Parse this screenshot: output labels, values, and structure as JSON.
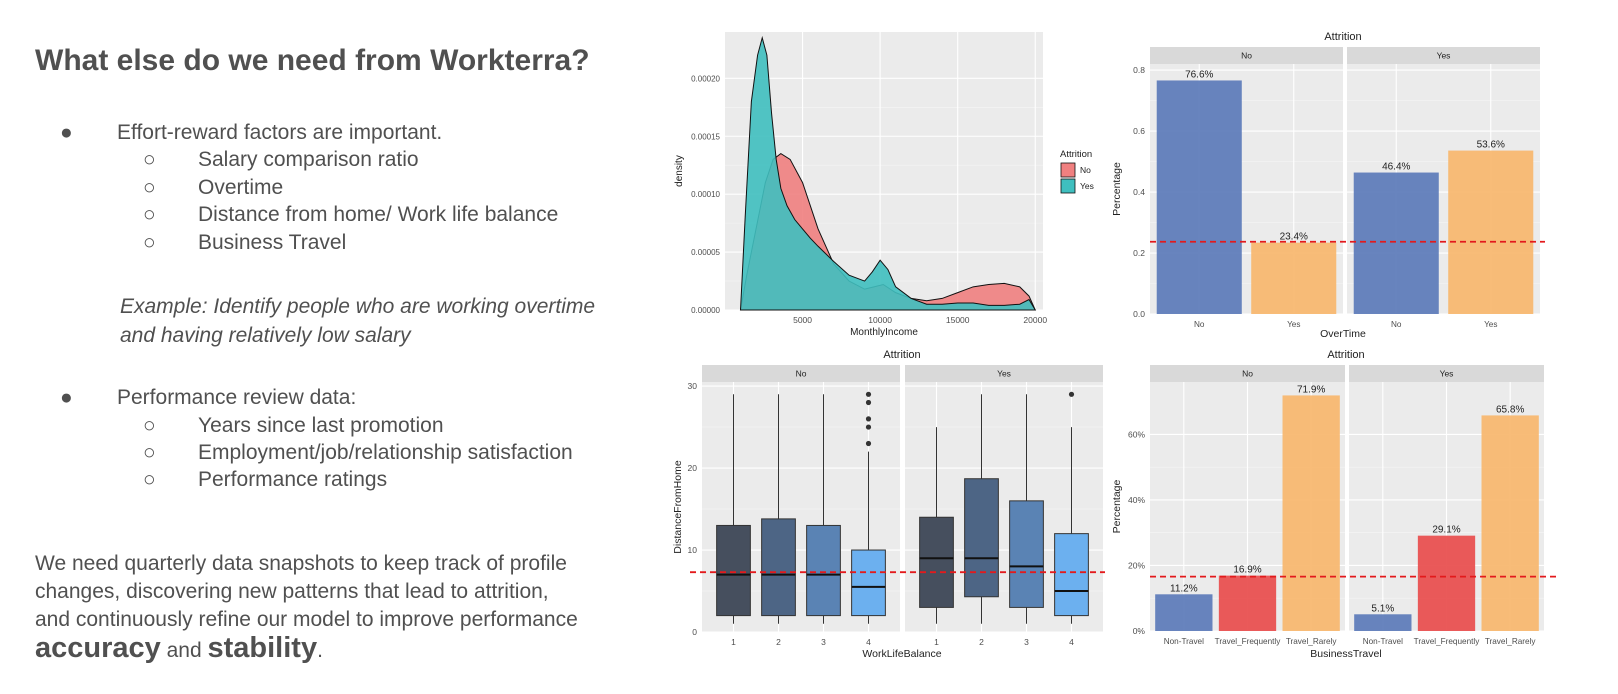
{
  "slide": {
    "title": "What else do we need from Workterra?",
    "bullet1": "Effort-reward factors are important.",
    "bullet1_sub": [
      "Salary comparison ratio",
      "Overtime",
      "Distance from home/ Work life balance",
      "Business Travel"
    ],
    "example_line1": "Example: Identify people who are working overtime",
    "example_line2": "and having relatively low salary",
    "bullet2": "Performance review data:",
    "bullet2_sub": [
      "Years since last promotion",
      "Employment/job/relationship satisfaction",
      "Performance ratings"
    ],
    "para_line1": "We need quarterly data snapshots to keep track of profile",
    "para_line2": "changes, discovering new patterns that lead to attrition,",
    "para_line3": "and continuously refine our model to improve performance",
    "para_bold1": "accuracy",
    "para_and": " and ",
    "para_bold2": "stability",
    "para_end": ".",
    "bullet_glyph": "●",
    "sub_glyph": "○"
  },
  "chart_data": [
    {
      "type": "area",
      "title": "",
      "xlabel": "MonthlyIncome",
      "ylabel": "density",
      "xlim": [
        0,
        20500
      ],
      "ylim": [
        0,
        0.00024
      ],
      "xticks": [
        5000,
        10000,
        15000,
        20000
      ],
      "yticks": [
        0.0,
        5e-05,
        0.0001,
        0.00015,
        0.0002
      ],
      "ytick_labels": [
        "0.00000",
        "0.00005",
        "0.00010",
        "0.00015",
        "0.00020"
      ],
      "legend_title": "Attrition",
      "legend_position": "right",
      "series": [
        {
          "name": "No",
          "color": "#f08080",
          "x": [
            1000,
            1400,
            2000,
            2600,
            3100,
            3600,
            4200,
            5000,
            6000,
            7000,
            8000,
            9000,
            9600,
            10200,
            11000,
            12000,
            13000,
            14000,
            15000,
            16000,
            17000,
            18000,
            19000,
            19600,
            20000
          ],
          "y": [
            0.0,
            3e-05,
            7e-05,
            0.00011,
            0.00013,
            0.000135,
            0.00013,
            0.00011,
            7e-05,
            4e-05,
            2.5e-05,
            1.8e-05,
            2e-05,
            2.2e-05,
            1.5e-05,
            1e-05,
            8e-06,
            1e-05,
            1.5e-05,
            2e-05,
            2.2e-05,
            2.3e-05,
            2e-05,
            1.2e-05,
            0.0
          ]
        },
        {
          "name": "Yes",
          "color": "#3fbfbf",
          "x": [
            1000,
            1300,
            1700,
            2100,
            2400,
            2700,
            3000,
            3300,
            3600,
            4000,
            4500,
            5000,
            5500,
            6000,
            7000,
            8000,
            9000,
            9500,
            10000,
            10500,
            11000,
            12000,
            13000,
            14000,
            15000,
            16000,
            17000,
            18000,
            19000,
            19600,
            20000
          ],
          "y": [
            0.0,
            8e-05,
            0.00018,
            0.00022,
            0.000235,
            0.00022,
            0.00017,
            0.00013,
            0.000105,
            9e-05,
            7.8e-05,
            7e-05,
            6.2e-05,
            5.5e-05,
            4.2e-05,
            3e-05,
            2.5e-05,
            3.3e-05,
            4.3e-05,
            3.5e-05,
            2e-05,
            1e-05,
            5e-06,
            5e-06,
            6e-06,
            6e-06,
            4e-06,
            4e-06,
            5e-06,
            9e-06,
            0.0
          ]
        }
      ]
    },
    {
      "type": "bar",
      "title": "Attrition",
      "xlabel": "OverTime",
      "ylabel": "Percentage",
      "ylim": [
        0,
        0.82
      ],
      "yticks": [
        0.0,
        0.2,
        0.4,
        0.6,
        0.8
      ],
      "ytick_labels": [
        "0.0",
        "0.2",
        "0.4",
        "0.6",
        "0.8"
      ],
      "facets": [
        "No",
        "Yes"
      ],
      "categories": [
        "No",
        "Yes"
      ],
      "values": [
        [
          0.766,
          0.234
        ],
        [
          0.464,
          0.536
        ]
      ],
      "labels": [
        [
          "76.6%",
          "23.4%"
        ],
        [
          "46.4%",
          "53.6%"
        ]
      ],
      "colors": [
        "#5b79b8",
        "#f7b66c"
      ],
      "reference_line": 0.237
    },
    {
      "type": "boxplot",
      "title": "Attrition",
      "xlabel": "WorkLifeBalance",
      "ylabel": "DistanceFromHome",
      "ylim": [
        0,
        30.5
      ],
      "yticks": [
        0,
        10,
        20,
        30
      ],
      "ytick_labels": [
        "0",
        "10",
        "20",
        "30"
      ],
      "facets": [
        "No",
        "Yes"
      ],
      "categories": [
        "1",
        "2",
        "3",
        "4"
      ],
      "colors": [
        "#464f5e",
        "#4d6585",
        "#5a83b4",
        "#6cb0ef"
      ],
      "boxes": [
        [
          {
            "min": 1,
            "q1": 2,
            "median": 7,
            "q3": 13,
            "max": 29,
            "outliers": []
          },
          {
            "min": 1,
            "q1": 2,
            "median": 7,
            "q3": 13.8,
            "max": 29,
            "outliers": []
          },
          {
            "min": 1,
            "q1": 2,
            "median": 7,
            "q3": 13,
            "max": 29,
            "outliers": []
          },
          {
            "min": 1,
            "q1": 2,
            "median": 5.5,
            "q3": 10,
            "max": 22,
            "outliers": [
              23,
              25,
              26,
              28,
              29
            ]
          }
        ],
        [
          {
            "min": 1,
            "q1": 3,
            "median": 9,
            "q3": 14,
            "max": 25,
            "outliers": []
          },
          {
            "min": 1,
            "q1": 4.3,
            "median": 9,
            "q3": 18.7,
            "max": 29,
            "outliers": []
          },
          {
            "min": 1,
            "q1": 3,
            "median": 8,
            "q3": 16,
            "max": 29,
            "outliers": []
          },
          {
            "min": 1,
            "q1": 2,
            "median": 5,
            "q3": 12,
            "max": 25,
            "outliers": [
              29
            ]
          }
        ]
      ],
      "reference_line": 7.3
    },
    {
      "type": "bar",
      "title": "Attrition",
      "xlabel": "BusinessTravel",
      "ylabel": "Percentage",
      "ylim": [
        0,
        0.76
      ],
      "yticks": [
        0.0,
        0.2,
        0.4,
        0.6
      ],
      "ytick_labels": [
        "0%",
        "20%",
        "40%",
        "60%"
      ],
      "facets": [
        "No",
        "Yes"
      ],
      "categories": [
        "Non-Travel",
        "Travel_Frequently",
        "Travel_Rarely"
      ],
      "values": [
        [
          0.112,
          0.169,
          0.719
        ],
        [
          0.051,
          0.291,
          0.658
        ]
      ],
      "labels": [
        [
          "11.2%",
          "16.9%",
          "71.9%"
        ],
        [
          "5.1%",
          "29.1%",
          "65.8%"
        ]
      ],
      "colors": [
        "#5b79b8",
        "#e84c4c",
        "#f7b66c"
      ],
      "reference_line": 0.166
    }
  ]
}
